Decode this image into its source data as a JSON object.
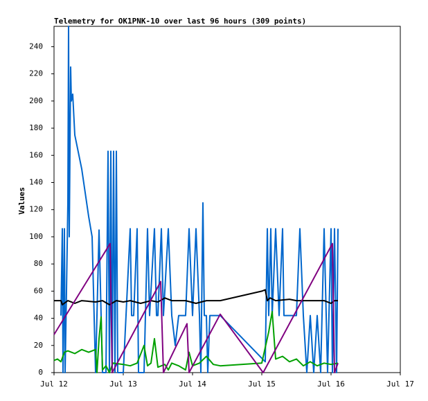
{
  "chart_data": {
    "type": "line",
    "title": "Telemetry for OK1PNK-10 over last 96 hours (309 points)",
    "y_label": "Values",
    "xlim": [
      12,
      17
    ],
    "xticks": [
      {
        "value": 12,
        "label": "Jul 12"
      },
      {
        "value": 13,
        "label": "Jul 13"
      },
      {
        "value": 14,
        "label": "Jul 14"
      },
      {
        "value": 15,
        "label": "Jul 15"
      },
      {
        "value": 16,
        "label": "Jul 16"
      },
      {
        "value": 17,
        "label": "Jul 17"
      }
    ],
    "ylim": [
      0,
      255
    ],
    "yticks": [
      0,
      20,
      40,
      60,
      80,
      100,
      120,
      140,
      160,
      180,
      200,
      220,
      240
    ],
    "grid": false,
    "series": [
      {
        "color": "#0066cc",
        "x": [
          12.1,
          12.12,
          12.13,
          12.15,
          12.16,
          12.18,
          12.2,
          12.21,
          12.22,
          12.24,
          12.25,
          12.27,
          12.3,
          12.4,
          12.5,
          12.55,
          12.6,
          12.65,
          12.7,
          12.75,
          12.78,
          12.8,
          12.82,
          12.84,
          12.86,
          12.88,
          12.9,
          12.92,
          12.95,
          13.0,
          13.1,
          13.12,
          13.15,
          13.2,
          13.22,
          13.3,
          13.35,
          13.38,
          13.45,
          13.48,
          13.5,
          13.55,
          13.58,
          13.65,
          13.7,
          13.75,
          13.8,
          13.9,
          13.95,
          14.0,
          14.05,
          14.1,
          14.12,
          14.15,
          14.17,
          14.2,
          14.22,
          14.25,
          14.35,
          14.4,
          15.05,
          15.08,
          15.1,
          15.13,
          15.15,
          15.2,
          15.25,
          15.3,
          15.32,
          15.5,
          15.55,
          15.6,
          15.65,
          15.7,
          15.75,
          15.8,
          15.85,
          15.9,
          15.95,
          16.0,
          16.02,
          16.05,
          16.08,
          16.1
        ],
        "values": [
          42,
          106,
          0,
          106,
          0,
          60,
          125,
          255,
          100,
          225,
          200,
          205,
          175,
          150,
          115,
          100,
          0,
          105,
          0,
          0,
          163,
          0,
          163,
          0,
          163,
          0,
          163,
          0,
          0,
          0,
          106,
          42,
          42,
          106,
          0,
          0,
          106,
          42,
          106,
          42,
          42,
          106,
          42,
          106,
          42,
          20,
          42,
          42,
          106,
          42,
          106,
          42,
          0,
          125,
          42,
          42,
          0,
          42,
          42,
          42,
          8,
          106,
          42,
          106,
          42,
          106,
          42,
          106,
          42,
          42,
          106,
          42,
          0,
          42,
          0,
          42,
          0,
          106,
          0,
          106,
          0,
          106,
          0,
          106
        ]
      },
      {
        "color": "#00a000",
        "x": [
          12.0,
          12.05,
          12.1,
          12.15,
          12.2,
          12.3,
          12.4,
          12.5,
          12.6,
          12.62,
          12.65,
          12.68,
          12.7,
          12.75,
          12.8,
          12.85,
          13.0,
          13.1,
          13.2,
          13.3,
          13.35,
          13.4,
          13.45,
          13.5,
          13.6,
          13.65,
          13.7,
          13.8,
          13.9,
          13.95,
          14.0,
          14.1,
          14.2,
          14.3,
          14.4,
          15.0,
          15.1,
          15.15,
          15.2,
          15.3,
          15.4,
          15.5,
          15.6,
          15.7,
          15.8,
          15.9,
          16.0,
          16.1
        ],
        "values": [
          9,
          10,
          8,
          15,
          16,
          14,
          17,
          15,
          17,
          0,
          25,
          41,
          2,
          5,
          0,
          7,
          6,
          5,
          7,
          20,
          5,
          7,
          25,
          4,
          6,
          2,
          7,
          5,
          2,
          15,
          5,
          7,
          12,
          6,
          5,
          7,
          30,
          45,
          10,
          12,
          8,
          10,
          5,
          8,
          5,
          7,
          6,
          7
        ]
      },
      {
        "color": "#000000",
        "x": [
          12.0,
          12.1,
          12.12,
          12.2,
          12.3,
          12.4,
          12.6,
          12.7,
          12.8,
          12.9,
          13.0,
          13.1,
          13.25,
          13.4,
          13.5,
          13.6,
          13.7,
          13.9,
          14.05,
          14.2,
          14.4,
          15.0,
          15.05,
          15.08,
          15.12,
          15.2,
          15.4,
          15.5,
          15.7,
          15.9,
          16.0,
          16.05,
          16.1
        ],
        "values": [
          53,
          53,
          50,
          53,
          51,
          53,
          52,
          53,
          50,
          53,
          52,
          53,
          51,
          53,
          52,
          55,
          53,
          53,
          51,
          53,
          53,
          60,
          61,
          53,
          55,
          53,
          54,
          53,
          53,
          53,
          51,
          53,
          53
        ]
      },
      {
        "color": "#800080",
        "x": [
          12.0,
          12.81,
          12.84,
          13.54,
          13.58,
          13.92,
          13.95,
          14.4,
          15.02,
          16.02,
          16.05,
          16.1
        ],
        "values": [
          28,
          95,
          0,
          67,
          0,
          36,
          0,
          43,
          0,
          95,
          0,
          7
        ]
      }
    ]
  }
}
